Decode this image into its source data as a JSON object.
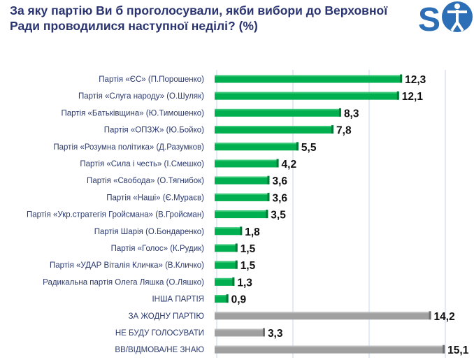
{
  "title": "За яку партію Ви б проголосували, якби вибори до Верховної Ради проводилися наступної неділі? (%)",
  "logo_text": "SO",
  "colors": {
    "party": "#00b050",
    "other": "#a0a0a0",
    "grid": "#c9d3ef"
  },
  "chart_data": {
    "type": "bar",
    "orientation": "horizontal",
    "title": "За яку партію Ви б проголосували, якби вибори до Верховної Ради проводилися наступної неділі? (%)",
    "xlim": [
      0,
      15.1
    ],
    "grid": true,
    "categories": [
      "Партія «ЄС» (П.Порошенко)",
      "Партія «Слуга народу» (О.Шуляк)",
      "Партія «Батьківщина» (Ю.Тимошенко)",
      "Партія «ОПЗЖ» (Ю.Бойко)",
      "Партія «Розумна політика» (Д.Разумков)",
      "Партія «Сила і честь» (І.Смешко)",
      "Партія «Свобода» (О.Тягнибок)",
      "Партія «Наші» (Є.Мураєв)",
      "Партія «Укр.стратегія Гройсмана» (В.Гройсман)",
      "Партія Шарія (О.Бондаренко)",
      "Партія «Голос» (К.Рудик)",
      "Партія «УДАР Віталія Кличка» (В.Кличко)",
      "Радикальна партія Олега Ляшка (О.Ляшко)",
      "ІНША ПАРТІЯ",
      "ЗА ЖОДНУ ПАРТІЮ",
      "НЕ БУДУ ГОЛОСУВАТИ",
      "ВВ/ВІДМОВА/НЕ ЗНАЮ"
    ],
    "values": [
      12.3,
      12.1,
      8.3,
      7.8,
      5.5,
      4.2,
      3.6,
      3.6,
      3.5,
      1.8,
      1.5,
      1.5,
      1.3,
      0.9,
      14.2,
      3.3,
      15.1
    ],
    "value_labels": [
      "12,3",
      "12,1",
      "8,3",
      "7,8",
      "5,5",
      "4,2",
      "3,6",
      "3,6",
      "3,5",
      "1,8",
      "1,5",
      "1,5",
      "1,3",
      "0,9",
      "14,2",
      "3,3",
      "15,1"
    ],
    "bar_group": [
      "party",
      "party",
      "party",
      "party",
      "party",
      "party",
      "party",
      "party",
      "party",
      "party",
      "party",
      "party",
      "party",
      "party",
      "other",
      "other",
      "other"
    ]
  }
}
